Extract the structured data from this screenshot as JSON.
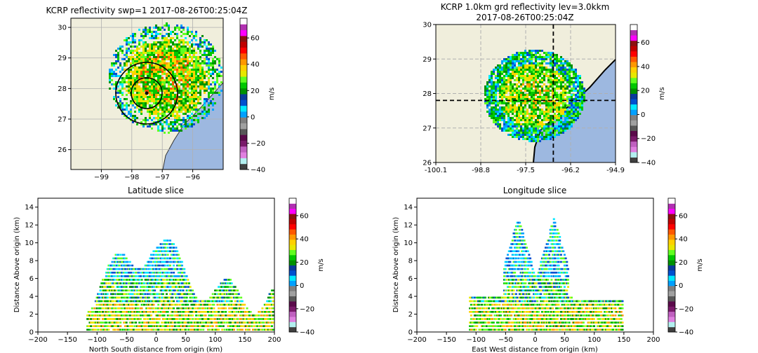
{
  "chart_data": [
    {
      "type": "heatmap",
      "title": "KCRP reflectivity swp=1 2017-08-26T00:25:04Z",
      "xticks": [
        -99,
        -98,
        -97,
        -96
      ],
      "yticks": [
        26,
        27,
        28,
        29,
        30
      ],
      "xlim": [
        -100.0,
        -95.0
      ],
      "ylim": [
        25.35,
        30.3
      ],
      "grid": true,
      "radar_site": {
        "lon": -97.5,
        "lat": 27.78
      },
      "range_rings_deg": [
        0.5,
        1.0
      ],
      "colorbar": {
        "label": "m/s",
        "ticks": [
          60,
          40,
          20,
          0,
          -20,
          -40
        ],
        "range": [
          -40,
          75
        ]
      }
    },
    {
      "type": "heatmap",
      "title": "KCRP 1.0km grd reflectivity lev=3.0kkm\n2017-08-26T00:25:04Z",
      "title_lines": [
        "KCRP 1.0km grd reflectivity lev=3.0kkm",
        "2017-08-26T00:25:04Z"
      ],
      "xticks": [
        "-100.1",
        "-98.8",
        "-97.5",
        "-96.2",
        "-94.9"
      ],
      "yticks": [
        26,
        27,
        28,
        29,
        30
      ],
      "xlim": [
        -100.1,
        -94.9
      ],
      "ylim": [
        26,
        30
      ],
      "grid": true,
      "crosshair": {
        "lon": -96.7,
        "lat": 27.8
      },
      "colorbar": {
        "label": "m/s",
        "ticks": [
          60,
          40,
          20,
          0,
          -20,
          -40
        ],
        "range": [
          -40,
          75
        ]
      }
    },
    {
      "type": "heatmap",
      "title": "Latitude slice",
      "xlabel": "North South distance from origin (km)",
      "ylabel": "Distance Above origin (km)",
      "xticks": [
        -200,
        -150,
        -100,
        -50,
        0,
        50,
        100,
        150,
        200
      ],
      "yticks": [
        0,
        2,
        4,
        6,
        8,
        10,
        12,
        14
      ],
      "xlim": [
        -200,
        200
      ],
      "ylim": [
        0,
        15
      ],
      "data_extent_km": [
        -118,
        198
      ],
      "colorbar": {
        "label": "m/s",
        "ticks": [
          60,
          40,
          20,
          0,
          -20,
          -40
        ],
        "range": [
          -40,
          75
        ]
      }
    },
    {
      "type": "heatmap",
      "title": "Longitude slice",
      "xlabel": "East West distance from origin (km)",
      "ylabel": "Distance Above origin (km)",
      "xticks": [
        -200,
        -150,
        -100,
        -50,
        0,
        50,
        100,
        150,
        200
      ],
      "yticks": [
        0,
        2,
        4,
        6,
        8,
        10,
        12,
        14
      ],
      "xlim": [
        -200,
        200
      ],
      "ylim": [
        0,
        15
      ],
      "data_extent_km": [
        -112,
        148
      ],
      "colorbar": {
        "label": "m/s",
        "ticks": [
          60,
          40,
          20,
          0,
          -20,
          -40
        ],
        "range": [
          -40,
          75
        ]
      }
    }
  ],
  "colors": {
    "land": "#f0eedc",
    "water": "#9db8e0",
    "grid": "#b0b0b0",
    "colormap": [
      "#404040",
      "#b3f0f0",
      "#e080e0",
      "#c060c0",
      "#7a1a6a",
      "#5a0a4a",
      "#585858",
      "#a0a0a0",
      "#808080",
      "#00a0ff",
      "#00e8ff",
      "#0050d0",
      "#0a3a9a",
      "#009000",
      "#00c800",
      "#60ff20",
      "#e8e800",
      "#ffd000",
      "#ff9800",
      "#ff5800",
      "#ff0000",
      "#c00000",
      "#8c1010",
      "#ff00ff",
      "#b030b0",
      "#ffffff"
    ]
  }
}
